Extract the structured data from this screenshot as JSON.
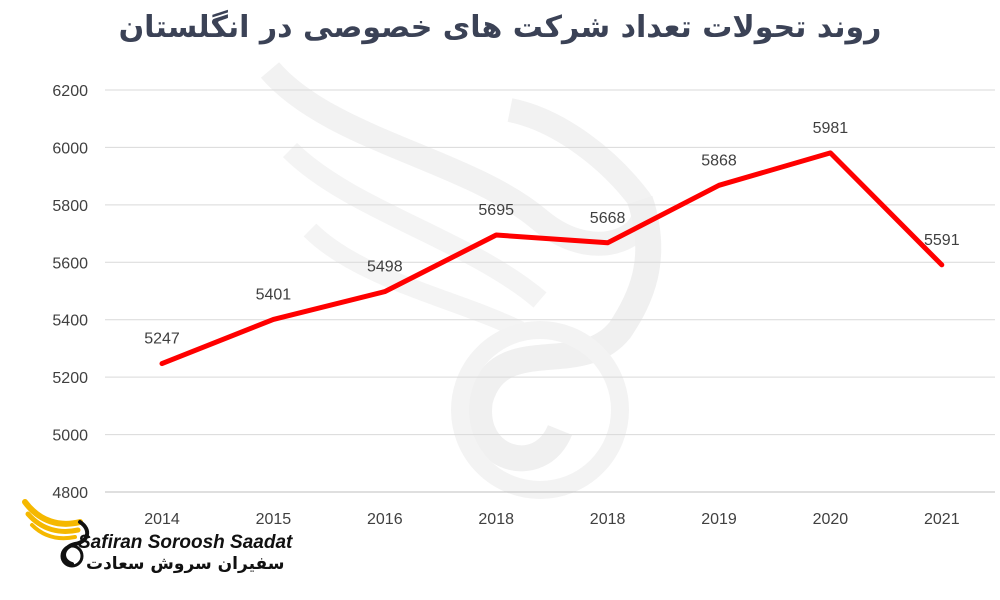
{
  "chart_data": {
    "type": "line",
    "title": "روند تحولات تعداد شرکت های خصوصی در انگلستان",
    "categories": [
      "2014",
      "2015",
      "2016",
      "2018",
      "2018",
      "2019",
      "2020",
      "2021"
    ],
    "series": [
      {
        "values": [
          5247,
          5401,
          5498,
          5695,
          5668,
          5868,
          5981,
          5591
        ],
        "color": "#ff0000"
      }
    ],
    "ylim": [
      4800,
      6200
    ],
    "yticks": [
      4800,
      5000,
      5200,
      5400,
      5600,
      5800,
      6000,
      6200
    ],
    "grid": true,
    "data_labels": true
  },
  "logo": {
    "text_en": "Safiran Soroosh Saadat",
    "text_fa": "سفیران سروش سعادت",
    "colors": [
      "#f5b800",
      "#111111"
    ]
  }
}
